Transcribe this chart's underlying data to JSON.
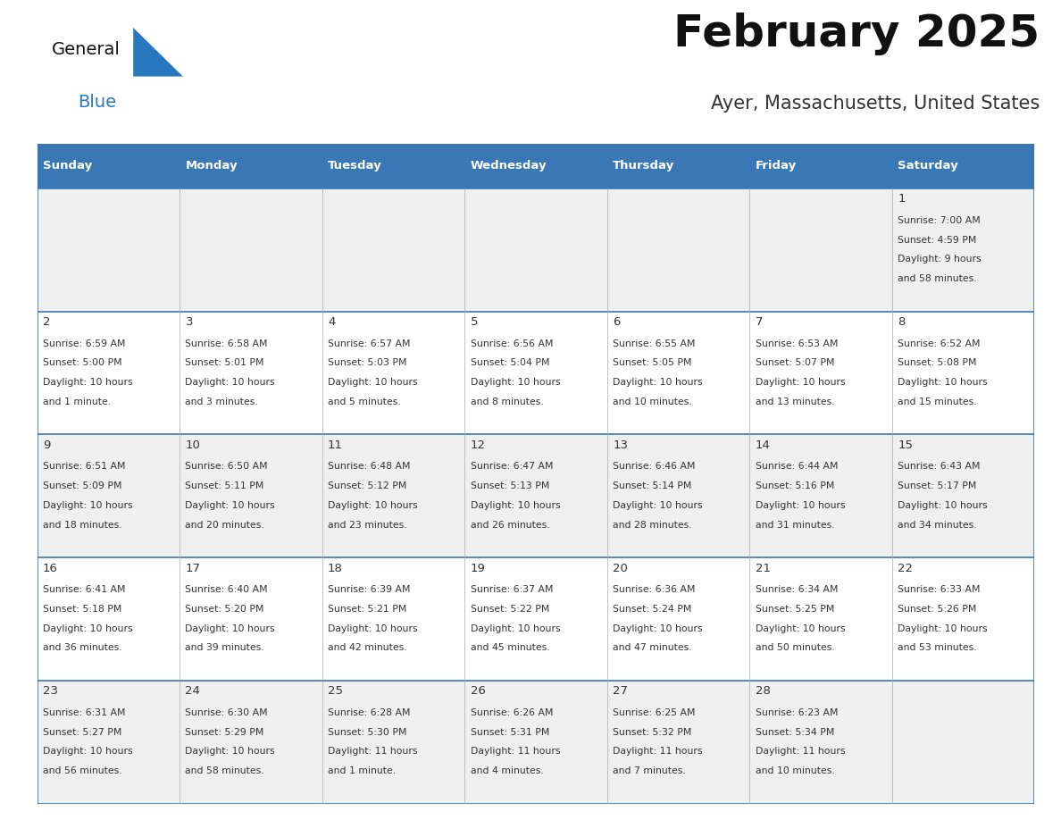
{
  "title": "February 2025",
  "subtitle": "Ayer, Massachusetts, United States",
  "header_bg_color": "#3a78b5",
  "header_text_color": "#ffffff",
  "day_names": [
    "Sunday",
    "Monday",
    "Tuesday",
    "Wednesday",
    "Thursday",
    "Friday",
    "Saturday"
  ],
  "row_colors": [
    "#efefef",
    "#ffffff",
    "#efefef",
    "#ffffff",
    "#efefef"
  ],
  "border_color": "#3a78b5",
  "text_color": "#333333",
  "title_color": "#111111",
  "subtitle_color": "#333333",
  "general_text_color": "#111111",
  "general_blue_color": "#2878c0",
  "cell_data": [
    [
      null,
      null,
      null,
      null,
      null,
      null,
      {
        "day": "1",
        "sunrise": "7:00 AM",
        "sunset": "4:59 PM",
        "daylight": "9 hours",
        "daylight2": "and 58 minutes."
      }
    ],
    [
      {
        "day": "2",
        "sunrise": "6:59 AM",
        "sunset": "5:00 PM",
        "daylight": "10 hours",
        "daylight2": "and 1 minute."
      },
      {
        "day": "3",
        "sunrise": "6:58 AM",
        "sunset": "5:01 PM",
        "daylight": "10 hours",
        "daylight2": "and 3 minutes."
      },
      {
        "day": "4",
        "sunrise": "6:57 AM",
        "sunset": "5:03 PM",
        "daylight": "10 hours",
        "daylight2": "and 5 minutes."
      },
      {
        "day": "5",
        "sunrise": "6:56 AM",
        "sunset": "5:04 PM",
        "daylight": "10 hours",
        "daylight2": "and 8 minutes."
      },
      {
        "day": "6",
        "sunrise": "6:55 AM",
        "sunset": "5:05 PM",
        "daylight": "10 hours",
        "daylight2": "and 10 minutes."
      },
      {
        "day": "7",
        "sunrise": "6:53 AM",
        "sunset": "5:07 PM",
        "daylight": "10 hours",
        "daylight2": "and 13 minutes."
      },
      {
        "day": "8",
        "sunrise": "6:52 AM",
        "sunset": "5:08 PM",
        "daylight": "10 hours",
        "daylight2": "and 15 minutes."
      }
    ],
    [
      {
        "day": "9",
        "sunrise": "6:51 AM",
        "sunset": "5:09 PM",
        "daylight": "10 hours",
        "daylight2": "and 18 minutes."
      },
      {
        "day": "10",
        "sunrise": "6:50 AM",
        "sunset": "5:11 PM",
        "daylight": "10 hours",
        "daylight2": "and 20 minutes."
      },
      {
        "day": "11",
        "sunrise": "6:48 AM",
        "sunset": "5:12 PM",
        "daylight": "10 hours",
        "daylight2": "and 23 minutes."
      },
      {
        "day": "12",
        "sunrise": "6:47 AM",
        "sunset": "5:13 PM",
        "daylight": "10 hours",
        "daylight2": "and 26 minutes."
      },
      {
        "day": "13",
        "sunrise": "6:46 AM",
        "sunset": "5:14 PM",
        "daylight": "10 hours",
        "daylight2": "and 28 minutes."
      },
      {
        "day": "14",
        "sunrise": "6:44 AM",
        "sunset": "5:16 PM",
        "daylight": "10 hours",
        "daylight2": "and 31 minutes."
      },
      {
        "day": "15",
        "sunrise": "6:43 AM",
        "sunset": "5:17 PM",
        "daylight": "10 hours",
        "daylight2": "and 34 minutes."
      }
    ],
    [
      {
        "day": "16",
        "sunrise": "6:41 AM",
        "sunset": "5:18 PM",
        "daylight": "10 hours",
        "daylight2": "and 36 minutes."
      },
      {
        "day": "17",
        "sunrise": "6:40 AM",
        "sunset": "5:20 PM",
        "daylight": "10 hours",
        "daylight2": "and 39 minutes."
      },
      {
        "day": "18",
        "sunrise": "6:39 AM",
        "sunset": "5:21 PM",
        "daylight": "10 hours",
        "daylight2": "and 42 minutes."
      },
      {
        "day": "19",
        "sunrise": "6:37 AM",
        "sunset": "5:22 PM",
        "daylight": "10 hours",
        "daylight2": "and 45 minutes."
      },
      {
        "day": "20",
        "sunrise": "6:36 AM",
        "sunset": "5:24 PM",
        "daylight": "10 hours",
        "daylight2": "and 47 minutes."
      },
      {
        "day": "21",
        "sunrise": "6:34 AM",
        "sunset": "5:25 PM",
        "daylight": "10 hours",
        "daylight2": "and 50 minutes."
      },
      {
        "day": "22",
        "sunrise": "6:33 AM",
        "sunset": "5:26 PM",
        "daylight": "10 hours",
        "daylight2": "and 53 minutes."
      }
    ],
    [
      {
        "day": "23",
        "sunrise": "6:31 AM",
        "sunset": "5:27 PM",
        "daylight": "10 hours",
        "daylight2": "and 56 minutes."
      },
      {
        "day": "24",
        "sunrise": "6:30 AM",
        "sunset": "5:29 PM",
        "daylight": "10 hours",
        "daylight2": "and 58 minutes."
      },
      {
        "day": "25",
        "sunrise": "6:28 AM",
        "sunset": "5:30 PM",
        "daylight": "11 hours",
        "daylight2": "and 1 minute."
      },
      {
        "day": "26",
        "sunrise": "6:26 AM",
        "sunset": "5:31 PM",
        "daylight": "11 hours",
        "daylight2": "and 4 minutes."
      },
      {
        "day": "27",
        "sunrise": "6:25 AM",
        "sunset": "5:32 PM",
        "daylight": "11 hours",
        "daylight2": "and 7 minutes."
      },
      {
        "day": "28",
        "sunrise": "6:23 AM",
        "sunset": "5:34 PM",
        "daylight": "11 hours",
        "daylight2": "and 10 minutes."
      },
      null
    ]
  ],
  "fig_width": 11.88,
  "fig_height": 9.18
}
